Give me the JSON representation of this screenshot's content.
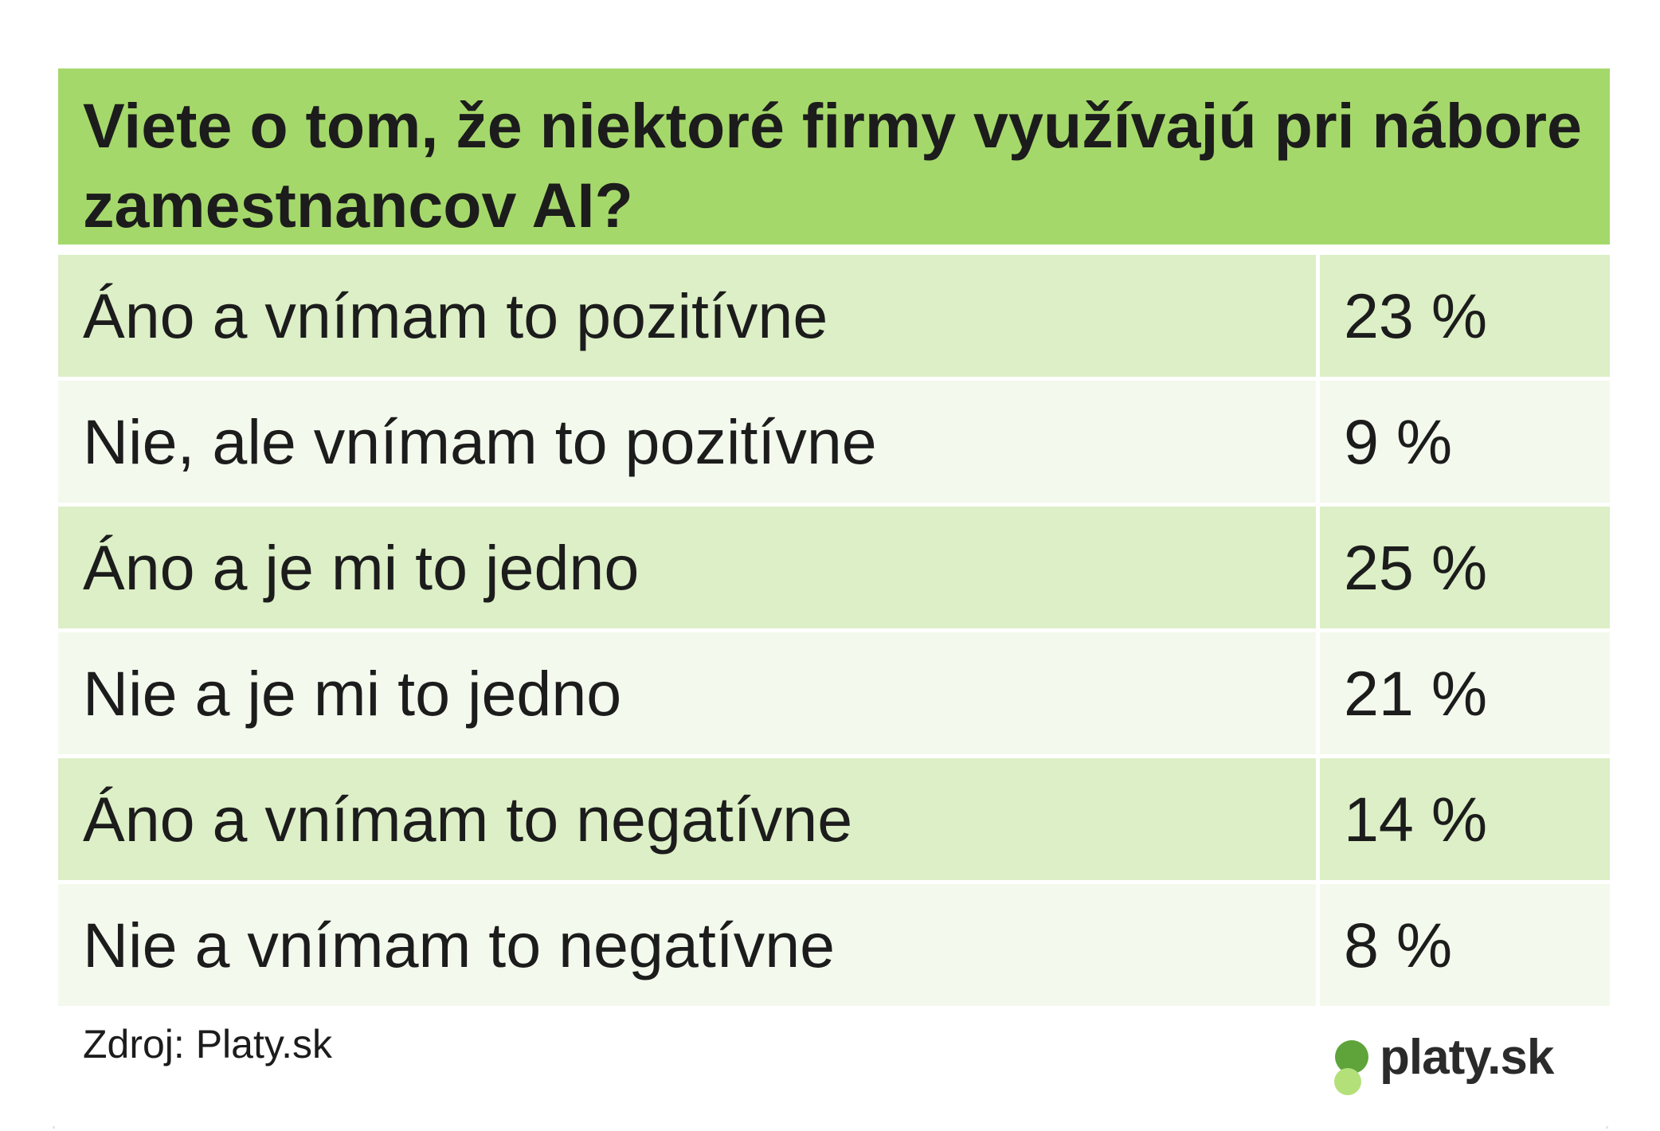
{
  "title": "Viete o tom, že niektoré firmy využívajú pri nábore zamestnancov AI?",
  "source": "Zdroj: Platy.sk",
  "logo_text": "platy.sk",
  "colors": {
    "header": "#a5d86b",
    "row_dark": "#dcefc6",
    "row_light": "#f3f9ec",
    "text": "#1c1c1c",
    "logo_dark_circle": "#5ea43a",
    "logo_light_circle": "#b4e07a"
  },
  "chart_data": {
    "type": "table",
    "title": "Viete o tom, že niektoré firmy využívajú pri nábore zamestnancov AI?",
    "categories": [
      "Áno a vnímam to pozitívne",
      "Nie, ale vnímam to pozitívne",
      "Áno a je mi to jedno",
      "Nie a je mi to jedno",
      "Áno a vnímam to negatívne",
      "Nie a vnímam to negatívne"
    ],
    "values": [
      23,
      9,
      25,
      21,
      14,
      8
    ],
    "unit": "%",
    "rows": [
      {
        "label": "Áno a vnímam to pozitívne",
        "value_text": "23 %"
      },
      {
        "label": "Nie, ale vnímam to pozitívne",
        "value_text": "9 %"
      },
      {
        "label": "Áno a je mi to jedno",
        "value_text": "25 %"
      },
      {
        "label": "Nie a je mi to jedno",
        "value_text": "21 %"
      },
      {
        "label": "Áno a vnímam to negatívne",
        "value_text": "14 %"
      },
      {
        "label": "Nie a vnímam to negatívne",
        "value_text": "8 %"
      }
    ]
  }
}
